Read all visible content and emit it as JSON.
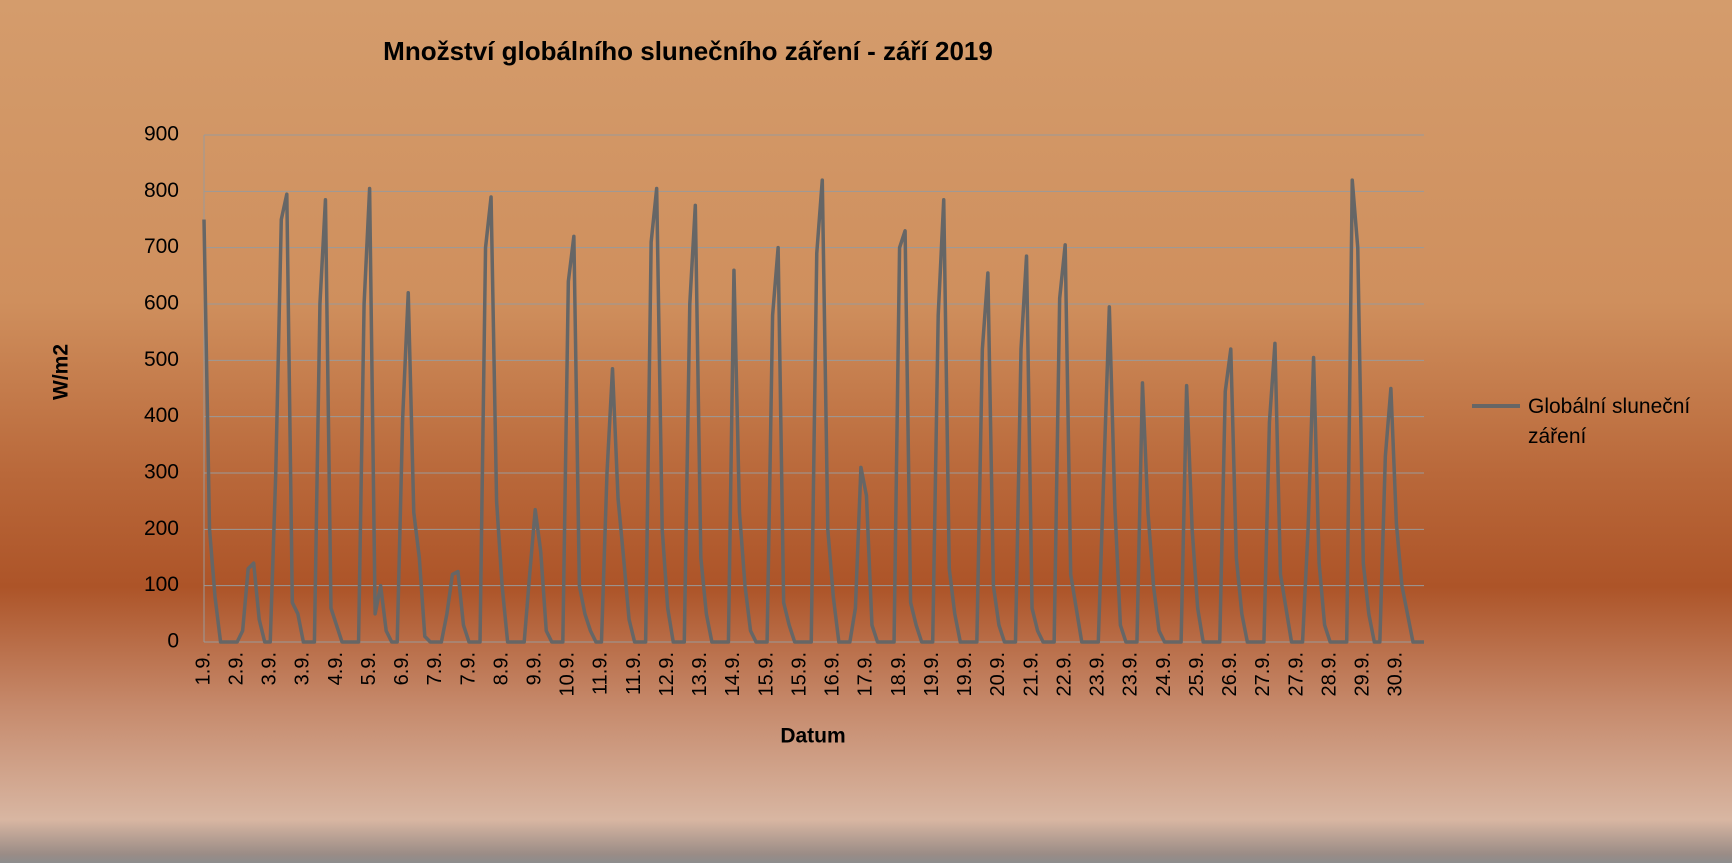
{
  "chart_data": {
    "type": "line",
    "title": "Množství globálního slunečního záření - září 2019",
    "x_label": "Datum",
    "y_label": "W/m2",
    "ylim": [
      0,
      900
    ],
    "yticks": [
      0,
      100,
      200,
      300,
      400,
      500,
      600,
      700,
      800,
      900
    ],
    "grid": true,
    "legend": "right",
    "categories": [
      "1.9.",
      null,
      null,
      null,
      null,
      null,
      "2.9.",
      null,
      null,
      null,
      null,
      null,
      "3.9.",
      null,
      null,
      null,
      null,
      null,
      "3.9.",
      null,
      null,
      null,
      null,
      null,
      "4.9.",
      null,
      null,
      null,
      null,
      null,
      "5.9.",
      null,
      null,
      null,
      null,
      null,
      "6.9.",
      null,
      null,
      null,
      null,
      null,
      "7.9.",
      null,
      null,
      null,
      null,
      null,
      "7.9.",
      null,
      null,
      null,
      null,
      null,
      "8.9.",
      null,
      null,
      null,
      null,
      null,
      "9.9.",
      null,
      null,
      null,
      null,
      null,
      "10.9.",
      null,
      null,
      null,
      null,
      null,
      "11.9.",
      null,
      null,
      null,
      null,
      null,
      "11.9.",
      null,
      null,
      null,
      null,
      null,
      "12.9.",
      null,
      null,
      null,
      null,
      null,
      "13.9.",
      null,
      null,
      null,
      null,
      null,
      "14.9.",
      null,
      null,
      null,
      null,
      null,
      "15.9.",
      null,
      null,
      null,
      null,
      null,
      "15.9.",
      null,
      null,
      null,
      null,
      null,
      "16.9.",
      null,
      null,
      null,
      null,
      null,
      "17.9.",
      null,
      null,
      null,
      null,
      null,
      "18.9.",
      null,
      null,
      null,
      null,
      null,
      "19.9.",
      null,
      null,
      null,
      null,
      null,
      "19.9.",
      null,
      null,
      null,
      null,
      null,
      "20.9.",
      null,
      null,
      null,
      null,
      null,
      "21.9.",
      null,
      null,
      null,
      null,
      null,
      "22.9.",
      null,
      null,
      null,
      null,
      null,
      "23.9.",
      null,
      null,
      null,
      null,
      null,
      "23.9.",
      null,
      null,
      null,
      null,
      null,
      "24.9.",
      null,
      null,
      null,
      null,
      null,
      "25.9.",
      null,
      null,
      null,
      null,
      null,
      "26.9.",
      null,
      null,
      null,
      null,
      null,
      "27.9.",
      null,
      null,
      null,
      null,
      null,
      "27.9.",
      null,
      null,
      null,
      null,
      null,
      "28.9.",
      null,
      null,
      null,
      null,
      null,
      "29.9.",
      null,
      null,
      null,
      null,
      null,
      "30.9.",
      null,
      null,
      null,
      null,
      null
    ],
    "series": [
      {
        "name": "Globální sluneční záření",
        "color": "#666666",
        "values": [
          750,
          200,
          80,
          0,
          0,
          0,
          0,
          20,
          130,
          140,
          40,
          0,
          0,
          300,
          750,
          795,
          70,
          50,
          0,
          0,
          0,
          600,
          785,
          60,
          30,
          0,
          0,
          0,
          0,
          600,
          805,
          50,
          100,
          20,
          0,
          0,
          400,
          620,
          230,
          150,
          10,
          0,
          0,
          0,
          50,
          120,
          125,
          30,
          0,
          0,
          0,
          700,
          790,
          250,
          100,
          0,
          0,
          0,
          0,
          120,
          235,
          160,
          20,
          0,
          0,
          0,
          640,
          720,
          100,
          50,
          20,
          0,
          0,
          300,
          485,
          255,
          150,
          40,
          0,
          0,
          0,
          710,
          805,
          200,
          60,
          0,
          0,
          0,
          600,
          775,
          150,
          50,
          0,
          0,
          0,
          0,
          660,
          230,
          100,
          20,
          0,
          0,
          0,
          580,
          700,
          70,
          30,
          0,
          0,
          0,
          0,
          690,
          820,
          200,
          80,
          0,
          0,
          0,
          60,
          310,
          260,
          30,
          0,
          0,
          0,
          0,
          700,
          730,
          70,
          30,
          0,
          0,
          0,
          580,
          785,
          130,
          50,
          0,
          0,
          0,
          0,
          520,
          655,
          100,
          30,
          0,
          0,
          0,
          520,
          685,
          60,
          20,
          0,
          0,
          0,
          610,
          705,
          120,
          60,
          0,
          0,
          0,
          0,
          300,
          595,
          240,
          30,
          0,
          0,
          0,
          460,
          230,
          100,
          20,
          0,
          0,
          0,
          0,
          455,
          200,
          60,
          0,
          0,
          0,
          0,
          445,
          520,
          150,
          50,
          0,
          0,
          0,
          0,
          390,
          530,
          120,
          60,
          0,
          0,
          0,
          200,
          505,
          140,
          30,
          0,
          0,
          0,
          0,
          820,
          700,
          140,
          50,
          0,
          0,
          330,
          450,
          210,
          100,
          50,
          0,
          0,
          0
        ]
      }
    ]
  }
}
